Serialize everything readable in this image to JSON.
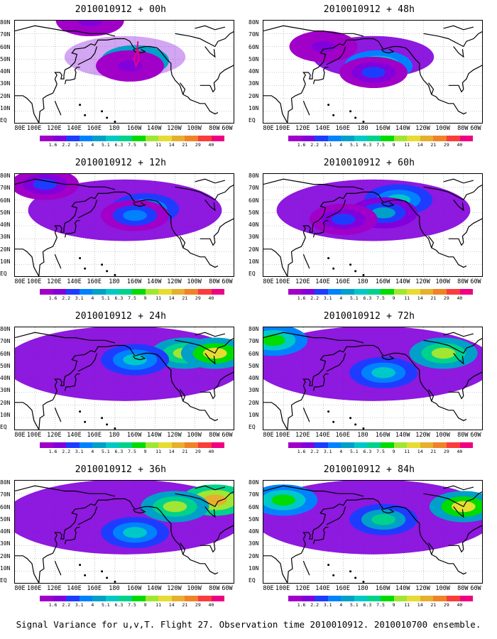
{
  "caption": "Signal Variance for u,v,T. Flight 27. Observation time 2010010912. 2010010700 ensemble.",
  "panels": [
    {
      "title": "2010010912 + 00h"
    },
    {
      "title": "2010010912 + 48h"
    },
    {
      "title": "2010010912 + 12h"
    },
    {
      "title": "2010010912 + 60h"
    },
    {
      "title": "2010010912 + 24h"
    },
    {
      "title": "2010010912 + 72h"
    },
    {
      "title": "2010010912 + 36h"
    },
    {
      "title": "2010010912 + 84h"
    }
  ],
  "map": {
    "lat_labels": [
      "80N",
      "70N",
      "60N",
      "50N",
      "40N",
      "30N",
      "20N",
      "10N",
      "EQ"
    ],
    "lon_labels": [
      "80E",
      "100E",
      "120E",
      "140E",
      "160E",
      "180",
      "160W",
      "140W",
      "120W",
      "100W",
      "80W",
      "60W"
    ]
  },
  "colorbar": {
    "levels": [
      "1.6",
      "2.2",
      "3.1",
      "4",
      "5.1",
      "6.3",
      "7.5",
      "9",
      "11",
      "14",
      "21",
      "29",
      "40"
    ],
    "colors": [
      "#a000c8",
      "#8200dc",
      "#1e3cff",
      "#0082ff",
      "#00a0c8",
      "#00c8c8",
      "#00d28c",
      "#00dc00",
      "#a0e632",
      "#e6dc32",
      "#e6af2d",
      "#f08228",
      "#fa3c3c",
      "#f00082"
    ]
  },
  "chart_data": {
    "type": "heatmap",
    "caption": "Signal Variance for u,v,T. Flight 27. Observation time 2010010912. 2010010700 ensemble.",
    "x_ticks": [
      "80E",
      "100E",
      "120E",
      "140E",
      "160E",
      "180",
      "160W",
      "140W",
      "120W",
      "100W",
      "80W",
      "60W"
    ],
    "y_ticks": [
      "80N",
      "70N",
      "60N",
      "50N",
      "40N",
      "30N",
      "20N",
      "10N",
      "EQ"
    ],
    "color_levels": [
      1.6,
      2.2,
      3.1,
      4,
      5.1,
      6.3,
      7.5,
      9,
      11,
      14,
      21,
      29,
      40
    ],
    "panels": [
      {
        "lead": "00h",
        "blobs": [
          {
            "lon": 200,
            "lat": 49,
            "value": 9
          },
          {
            "lon": 195,
            "lat": 45,
            "value": 2
          },
          {
            "lon": 155,
            "lat": 80,
            "value": 1.6
          }
        ]
      },
      {
        "lead": "12h",
        "blobs": [
          {
            "lon": 195,
            "lat": 45,
            "value": 7.5
          },
          {
            "lon": 190,
            "lat": 40,
            "value": 2.2
          },
          {
            "lon": 140,
            "lat": 60,
            "value": 1.8
          }
        ]
      },
      {
        "lead": "24h",
        "blobs": [
          {
            "lon": 210,
            "lat": 53,
            "value": 5.1
          },
          {
            "lon": 200,
            "lat": 48,
            "value": 3.1
          },
          {
            "lon": 110,
            "lat": 72,
            "value": 2.2
          }
        ]
      },
      {
        "lead": "36h",
        "blobs": [
          {
            "lon": 215,
            "lat": 60,
            "value": 5.1
          },
          {
            "lon": 200,
            "lat": 50,
            "value": 4
          },
          {
            "lon": 160,
            "lat": 45,
            "value": 2.2
          }
        ]
      },
      {
        "lead": "48h",
        "blobs": [
          {
            "lon": 250,
            "lat": 60,
            "value": 9
          },
          {
            "lon": 280,
            "lat": 60,
            "value": 11
          },
          {
            "lon": 200,
            "lat": 55,
            "value": 5.1
          }
        ]
      },
      {
        "lead": "60h",
        "blobs": [
          {
            "lon": 260,
            "lat": 60,
            "value": 9
          },
          {
            "lon": 90,
            "lat": 70,
            "value": 7.5
          },
          {
            "lon": 200,
            "lat": 45,
            "value": 5.1
          }
        ]
      },
      {
        "lead": "72h",
        "blobs": [
          {
            "lon": 280,
            "lat": 65,
            "value": 14
          },
          {
            "lon": 240,
            "lat": 60,
            "value": 9
          },
          {
            "lon": 200,
            "lat": 40,
            "value": 5.1
          }
        ]
      },
      {
        "lead": "84h",
        "blobs": [
          {
            "lon": 100,
            "lat": 65,
            "value": 7.5
          },
          {
            "lon": 280,
            "lat": 60,
            "value": 11
          },
          {
            "lon": 200,
            "lat": 50,
            "value": 6.3
          }
        ]
      }
    ]
  }
}
